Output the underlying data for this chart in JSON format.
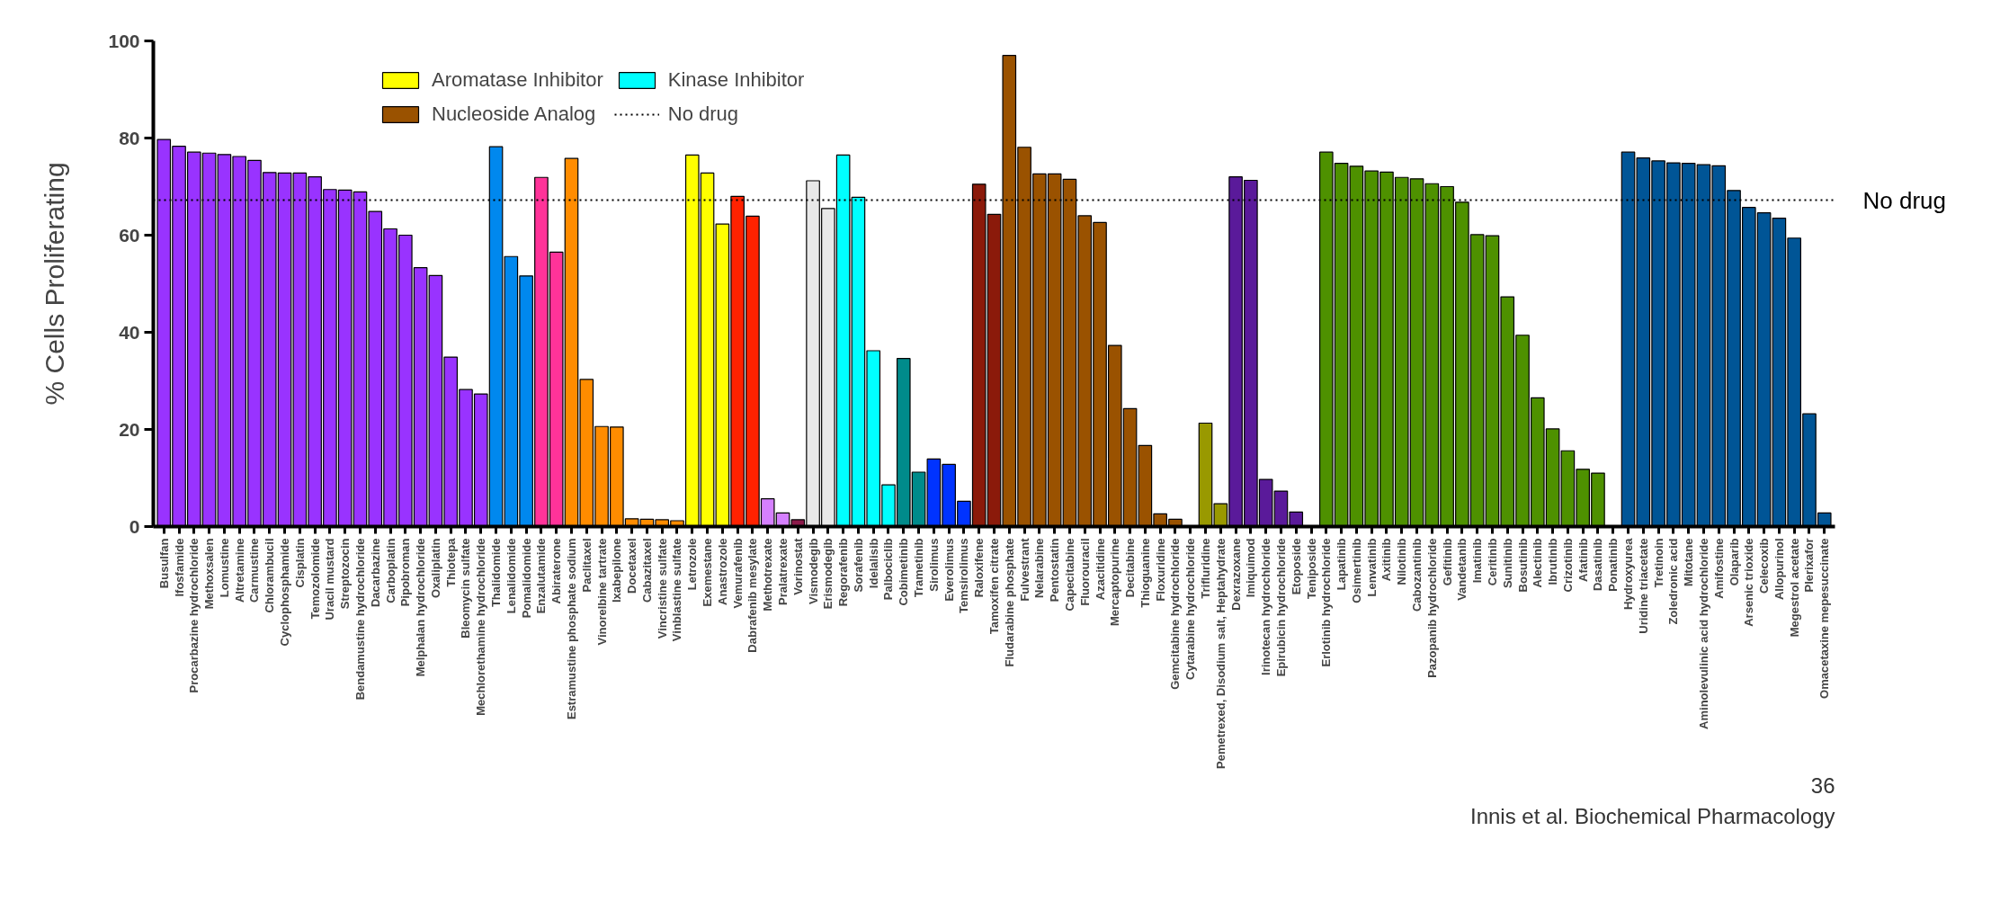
{
  "chart_data": {
    "type": "bar",
    "ylabel": "% Cells Proliferating",
    "categories": [
      "Busulfan",
      "Ifosfamide",
      "Procarbazine hydrochloride",
      "Methoxsalen",
      "Lomustine",
      "Altretamine",
      "Carmustine",
      "Chlorambucil",
      "Cyclophosphamide",
      "Cisplatin",
      "Temozolomide",
      "Uracil mustard",
      "Streptozocin",
      "Bendamustine hydrochloride",
      "Dacarbazine",
      "Carboplatin",
      "Pipobroman",
      "Melphalan hydrochloride",
      "Oxaliplatin",
      "Thiotepa",
      "Bleomycin sulfate",
      "Mechlorethamine hydrochloride",
      "Thalidomide",
      "Lenalidomide",
      "Pomalidomide",
      "Enzalutamide",
      "Abiraterone",
      "Estramustine phosphate sodium",
      "Paclitaxel",
      "Vinorelbine tartrate",
      "Ixabepilone",
      "Docetaxel",
      "Cabazitaxel",
      "Vincristine sulfate",
      "Vinblastine sulfate",
      "Letrozole",
      "Exemestane",
      "Anastrozole",
      "Vemurafenib",
      "Dabrafenib mesylate",
      "Methotrexate",
      "Pralatrexate",
      "Vorinostat",
      "Vismodegib",
      "Erismodegib",
      "Regorafenib",
      "Sorafenib",
      "Idelalisib",
      "Palbociclib",
      "Cobimetinib",
      "Trametinib",
      "Sirolimus",
      "Everolimus",
      "Temsirolimus",
      "Raloxifene",
      "Tamoxifen citrate",
      "Fludarabine phosphate",
      "Fulvestrant",
      "Nelarabine",
      "Pentostatin",
      "Capecitabine",
      "Fluorouracil",
      "Azacitidine",
      "Mercaptopurine",
      "Decitabine",
      "Thioguanine",
      "Floxuridine",
      "Gemcitabine hydrochloride",
      "Cytarabine hydrochloride",
      "Trifluridine",
      "Pemetrexed, Disodium salt, Heptahydrate",
      "Dexrazoxane",
      "Imiquimod",
      "Irinotecan hydrochloride",
      "Epirubicin hydrochloride",
      "Etoposide",
      "Teniposide",
      "Erlotinib hydrochloride",
      "Lapatinib",
      "Osimertinib",
      "Lenvatinib",
      "Axitinib",
      "Nilotinib",
      "Cabozantinib",
      "Pazopanib hydrochloride",
      "Gefitinib",
      "Vandetanib",
      "Imatinib",
      "Ceritinib",
      "Sunitinib",
      "Bosutinib",
      "Alectinib",
      "Ibrutinib",
      "Crizotinib",
      "Afatinib",
      "Dasatinib",
      "Ponatinib",
      "Hydroxyurea",
      "Uridine triacetate",
      "Tretinoin",
      "Zoledronic acid",
      "Mitotane",
      "Aminolevulinic acid hydrochloride",
      "Amifostine",
      "Olaparib",
      "Arsenic trioxide",
      "Celecoxib",
      "Allopurinol",
      "Megestrol acetate",
      "Plerixafor",
      "Omacetaxine mepesuccinate"
    ],
    "series": [
      {
        "color": "#9933ff",
        "values": [
          79.7,
          78.3,
          77.1,
          76.9,
          76.6,
          76.2,
          75.4,
          72.9,
          72.8,
          72.8,
          72.0,
          69.4,
          69.3,
          68.9,
          64.9,
          61.3,
          60.0,
          53.3,
          51.7,
          34.9,
          28.2,
          27.3,
          null,
          null,
          null,
          null,
          null,
          null,
          null,
          null,
          null,
          null,
          null,
          null,
          null,
          null,
          null,
          null,
          null,
          null,
          null,
          null,
          null,
          null,
          null,
          null,
          null,
          null,
          null,
          null,
          null,
          null,
          null,
          null,
          null,
          null,
          null,
          null,
          null,
          null,
          null,
          null,
          null,
          null,
          null,
          null,
          null,
          null,
          null,
          null,
          null,
          null,
          null,
          null,
          null,
          null,
          null,
          null,
          null,
          null,
          null,
          null,
          null,
          null,
          null,
          null,
          null,
          null,
          null,
          null,
          null,
          null,
          null,
          null,
          null,
          null,
          null,
          null,
          null,
          null,
          null,
          null,
          null,
          null,
          null,
          null,
          null,
          null,
          null,
          null,
          null
        ]
      },
      {
        "color": "#0088ee",
        "values": [
          null,
          null,
          null,
          null,
          null,
          null,
          null,
          null,
          null,
          null,
          null,
          null,
          null,
          null,
          null,
          null,
          null,
          null,
          null,
          null,
          null,
          null,
          78.2,
          55.6,
          51.6,
          null,
          null,
          null,
          null,
          null,
          null,
          null,
          null,
          null,
          null,
          null,
          null,
          null,
          null,
          null,
          null,
          null,
          null,
          null,
          null,
          null,
          null,
          null,
          null,
          null,
          null,
          null,
          null,
          null,
          null,
          null,
          null,
          null,
          null,
          null,
          null,
          null,
          null,
          null,
          null,
          null,
          null,
          null,
          null,
          null,
          null,
          null,
          null,
          null,
          null,
          null,
          null,
          null,
          null,
          null,
          null,
          null,
          null,
          null,
          null,
          null,
          null,
          null,
          null,
          null,
          null,
          null,
          null,
          null,
          null,
          null,
          null,
          null,
          null,
          null,
          null,
          null,
          null,
          null,
          null,
          null,
          null,
          null,
          null,
          null,
          null
        ]
      },
      {
        "color": "#ff3399",
        "values": [
          null,
          null,
          null,
          null,
          null,
          null,
          null,
          null,
          null,
          null,
          null,
          null,
          null,
          null,
          null,
          null,
          null,
          null,
          null,
          null,
          null,
          null,
          null,
          null,
          null,
          71.9,
          56.5,
          null,
          null,
          null,
          null,
          null,
          null,
          null,
          null,
          null,
          null,
          null,
          null,
          null,
          null,
          null,
          null,
          null,
          null,
          null,
          null,
          null,
          null,
          null,
          null,
          null,
          null,
          null,
          null,
          null,
          null,
          null,
          null,
          null,
          null,
          null,
          null,
          null,
          null,
          null,
          null,
          null,
          null,
          null,
          null,
          null,
          null,
          null,
          null,
          null,
          null,
          null,
          null,
          null,
          null,
          null,
          null,
          null,
          null,
          null,
          null,
          null,
          null,
          null,
          null,
          null,
          null,
          null,
          null,
          null,
          null,
          null,
          null,
          null,
          null,
          null,
          null,
          null,
          null,
          null,
          null,
          null,
          null,
          null,
          null
        ]
      },
      {
        "color": "#ff8c00",
        "values": [
          null,
          null,
          null,
          null,
          null,
          null,
          null,
          null,
          null,
          null,
          null,
          null,
          null,
          null,
          null,
          null,
          null,
          null,
          null,
          null,
          null,
          null,
          null,
          null,
          null,
          null,
          null,
          75.8,
          30.3,
          20.6,
          20.5,
          1.6,
          1.5,
          1.4,
          1.2,
          null,
          null,
          null,
          null,
          null,
          null,
          null,
          null,
          null,
          null,
          null,
          null,
          null,
          null,
          null,
          null,
          null,
          null,
          null,
          null,
          null,
          null,
          null,
          null,
          null,
          null,
          null,
          null,
          null,
          null,
          null,
          null,
          null,
          null,
          null,
          null,
          null,
          null,
          null,
          null,
          null,
          null,
          null,
          null,
          null,
          null,
          null,
          null,
          null,
          null,
          null,
          null,
          null,
          null,
          null,
          null,
          null,
          null,
          null,
          null,
          null,
          null,
          null,
          null,
          null,
          null,
          null,
          null,
          null,
          null,
          null,
          null,
          null,
          null,
          null,
          null
        ]
      },
      {
        "name": "Aromatase Inhibitor",
        "color": "#ffff00",
        "values": [
          null,
          null,
          null,
          null,
          null,
          null,
          null,
          null,
          null,
          null,
          null,
          null,
          null,
          null,
          null,
          null,
          null,
          null,
          null,
          null,
          null,
          null,
          null,
          null,
          null,
          null,
          null,
          null,
          null,
          null,
          null,
          null,
          null,
          null,
          null,
          76.5,
          72.8,
          62.3,
          null,
          null,
          null,
          null,
          null,
          null,
          null,
          null,
          null,
          null,
          null,
          null,
          null,
          null,
          null,
          null,
          null,
          null,
          null,
          null,
          null,
          null,
          null,
          null,
          null,
          null,
          null,
          null,
          null,
          null,
          null,
          null,
          null,
          null,
          null,
          null,
          null,
          null,
          null,
          null,
          null,
          null,
          null,
          null,
          null,
          null,
          null,
          null,
          null,
          null,
          null,
          null,
          null,
          null,
          null,
          null,
          null,
          null,
          null,
          null,
          null,
          null,
          null,
          null,
          null,
          null,
          null,
          null,
          null,
          null,
          null,
          null,
          null
        ]
      },
      {
        "color": "#ff2200",
        "values": [
          null,
          null,
          null,
          null,
          null,
          null,
          null,
          null,
          null,
          null,
          null,
          null,
          null,
          null,
          null,
          null,
          null,
          null,
          null,
          null,
          null,
          null,
          null,
          null,
          null,
          null,
          null,
          null,
          null,
          null,
          null,
          null,
          null,
          null,
          null,
          null,
          null,
          null,
          68.0,
          63.9,
          null,
          null,
          null,
          null,
          null,
          null,
          null,
          null,
          null,
          null,
          null,
          null,
          null,
          null,
          null,
          null,
          null,
          null,
          null,
          null,
          null,
          null,
          null,
          null,
          null,
          null,
          null,
          null,
          null,
          null,
          null,
          null,
          null,
          null,
          null,
          null,
          null,
          null,
          null,
          null,
          null,
          null,
          null,
          null,
          null,
          null,
          null,
          null,
          null,
          null,
          null,
          null,
          null,
          null,
          null,
          null,
          null,
          null,
          null,
          null,
          null,
          null,
          null,
          null,
          null,
          null,
          null,
          null,
          null,
          null,
          null
        ]
      },
      {
        "color": "#d580ff",
        "values": [
          null,
          null,
          null,
          null,
          null,
          null,
          null,
          null,
          null,
          null,
          null,
          null,
          null,
          null,
          null,
          null,
          null,
          null,
          null,
          null,
          null,
          null,
          null,
          null,
          null,
          null,
          null,
          null,
          null,
          null,
          null,
          null,
          null,
          null,
          null,
          null,
          null,
          null,
          null,
          null,
          5.7,
          2.8,
          null,
          null,
          null,
          null,
          null,
          null,
          null,
          null,
          null,
          null,
          null,
          null,
          null,
          null,
          null,
          null,
          null,
          null,
          null,
          null,
          null,
          null,
          null,
          null,
          null,
          null,
          null,
          null,
          null,
          null,
          null,
          null,
          null,
          null,
          null,
          null,
          null,
          null,
          null,
          null,
          null,
          null,
          null,
          null,
          null,
          null,
          null,
          null,
          null,
          null,
          null,
          null,
          null,
          null,
          null,
          null,
          null,
          null,
          null,
          null,
          null,
          null,
          null,
          null,
          null,
          null,
          null,
          null,
          null
        ]
      },
      {
        "color": "#8b1a4a",
        "values": [
          null,
          null,
          null,
          null,
          null,
          null,
          null,
          null,
          null,
          null,
          null,
          null,
          null,
          null,
          null,
          null,
          null,
          null,
          null,
          null,
          null,
          null,
          null,
          null,
          null,
          null,
          null,
          null,
          null,
          null,
          null,
          null,
          null,
          null,
          null,
          null,
          null,
          null,
          null,
          null,
          null,
          null,
          1.4,
          null,
          null,
          null,
          null,
          null,
          null,
          null,
          null,
          null,
          null,
          null,
          null,
          null,
          null,
          null,
          null,
          null,
          null,
          null,
          null,
          null,
          null,
          null,
          null,
          null,
          null,
          null,
          null,
          null,
          null,
          null,
          null,
          null,
          null,
          null,
          null,
          null,
          null,
          null,
          null,
          null,
          null,
          null,
          null,
          null,
          null,
          null,
          null,
          null,
          null,
          null,
          null,
          null,
          null,
          null,
          null,
          null,
          null,
          null,
          null,
          null,
          null,
          null,
          null,
          null,
          null,
          null,
          null
        ]
      },
      {
        "color": "#e8e8e8",
        "values": [
          null,
          null,
          null,
          null,
          null,
          null,
          null,
          null,
          null,
          null,
          null,
          null,
          null,
          null,
          null,
          null,
          null,
          null,
          null,
          null,
          null,
          null,
          null,
          null,
          null,
          null,
          null,
          null,
          null,
          null,
          null,
          null,
          null,
          null,
          null,
          null,
          null,
          null,
          null,
          null,
          null,
          null,
          null,
          71.2,
          65.5,
          null,
          null,
          null,
          null,
          null,
          null,
          null,
          null,
          null,
          null,
          null,
          null,
          null,
          null,
          null,
          null,
          null,
          null,
          null,
          null,
          null,
          null,
          null,
          null,
          null,
          null,
          null,
          null,
          null,
          null,
          null,
          null,
          null,
          null,
          null,
          null,
          null,
          null,
          null,
          null,
          null,
          null,
          null,
          null,
          null,
          null,
          null,
          null,
          null,
          null,
          null,
          null,
          null,
          null,
          null,
          null,
          null,
          null,
          null,
          null,
          null,
          null,
          null,
          null,
          null,
          null
        ]
      },
      {
        "name": "Kinase Inhibitor",
        "color": "#00ffff",
        "values": [
          null,
          null,
          null,
          null,
          null,
          null,
          null,
          null,
          null,
          null,
          null,
          null,
          null,
          null,
          null,
          null,
          null,
          null,
          null,
          null,
          null,
          null,
          null,
          null,
          null,
          null,
          null,
          null,
          null,
          null,
          null,
          null,
          null,
          null,
          null,
          null,
          null,
          null,
          null,
          null,
          null,
          null,
          null,
          null,
          null,
          76.5,
          67.8,
          36.2,
          8.6,
          null,
          null,
          null,
          null,
          null,
          null,
          null,
          null,
          null,
          null,
          null,
          null,
          null,
          null,
          null,
          null,
          null,
          null,
          null,
          null,
          null,
          null,
          null,
          null,
          null,
          null,
          null,
          null,
          null,
          null,
          null,
          null,
          null,
          null,
          null,
          null,
          null,
          null,
          null,
          null,
          null,
          null,
          null,
          null,
          null,
          null,
          null,
          null,
          null,
          null,
          null,
          null,
          null,
          null,
          null,
          null,
          null,
          null,
          null,
          null,
          null,
          null
        ]
      },
      {
        "color": "#008b8b",
        "values": [
          null,
          null,
          null,
          null,
          null,
          null,
          null,
          null,
          null,
          null,
          null,
          null,
          null,
          null,
          null,
          null,
          null,
          null,
          null,
          null,
          null,
          null,
          null,
          null,
          null,
          null,
          null,
          null,
          null,
          null,
          null,
          null,
          null,
          null,
          null,
          null,
          null,
          null,
          null,
          null,
          null,
          null,
          null,
          null,
          null,
          null,
          null,
          null,
          null,
          34.6,
          11.2,
          null,
          null,
          null,
          null,
          null,
          null,
          null,
          null,
          null,
          null,
          null,
          null,
          null,
          null,
          null,
          null,
          null,
          null,
          null,
          null,
          null,
          null,
          null,
          null,
          null,
          null,
          null,
          null,
          null,
          null,
          null,
          null,
          null,
          null,
          null,
          null,
          null,
          null,
          null,
          null,
          null,
          null,
          null,
          null,
          null,
          null,
          null,
          null,
          null,
          null,
          null,
          null,
          null,
          null,
          null,
          null,
          null,
          null,
          null,
          null
        ]
      },
      {
        "color": "#0033ff",
        "values": [
          null,
          null,
          null,
          null,
          null,
          null,
          null,
          null,
          null,
          null,
          null,
          null,
          null,
          null,
          null,
          null,
          null,
          null,
          null,
          null,
          null,
          null,
          null,
          null,
          null,
          null,
          null,
          null,
          null,
          null,
          null,
          null,
          null,
          null,
          null,
          null,
          null,
          null,
          null,
          null,
          null,
          null,
          null,
          null,
          null,
          null,
          null,
          null,
          null,
          null,
          null,
          13.9,
          12.8,
          5.2,
          null,
          null,
          null,
          null,
          null,
          null,
          null,
          null,
          null,
          null,
          null,
          null,
          null,
          null,
          null,
          null,
          null,
          null,
          null,
          null,
          null,
          null,
          null,
          null,
          null,
          null,
          null,
          null,
          null,
          null,
          null,
          null,
          null,
          null,
          null,
          null,
          null,
          null,
          null,
          null,
          null,
          null,
          null,
          null,
          null,
          null,
          null,
          null,
          null,
          null,
          null,
          null,
          null,
          null,
          null,
          null,
          null
        ]
      },
      {
        "color": "#8b1a0a",
        "values": [
          null,
          null,
          null,
          null,
          null,
          null,
          null,
          null,
          null,
          null,
          null,
          null,
          null,
          null,
          null,
          null,
          null,
          null,
          null,
          null,
          null,
          null,
          null,
          null,
          null,
          null,
          null,
          null,
          null,
          null,
          null,
          null,
          null,
          null,
          null,
          null,
          null,
          null,
          null,
          null,
          null,
          null,
          null,
          null,
          null,
          null,
          null,
          null,
          null,
          null,
          null,
          null,
          null,
          null,
          70.5,
          64.3,
          null,
          null,
          null,
          null,
          null,
          null,
          null,
          null,
          null,
          null,
          null,
          null,
          null,
          null,
          null,
          null,
          null,
          null,
          null,
          null,
          null,
          null,
          null,
          null,
          null,
          null,
          null,
          null,
          null,
          null,
          null,
          null,
          null,
          null,
          null,
          null,
          null,
          null,
          null,
          null,
          null,
          null,
          null,
          null,
          null,
          null,
          null,
          null,
          null,
          null,
          null,
          null,
          null,
          null,
          null
        ]
      },
      {
        "name": "Nucleoside Analog",
        "color": "#9a5200",
        "values": [
          null,
          null,
          null,
          null,
          null,
          null,
          null,
          null,
          null,
          null,
          null,
          null,
          null,
          null,
          null,
          null,
          null,
          null,
          null,
          null,
          null,
          null,
          null,
          null,
          null,
          null,
          null,
          null,
          null,
          null,
          null,
          null,
          null,
          null,
          null,
          null,
          null,
          null,
          null,
          null,
          null,
          null,
          null,
          null,
          null,
          null,
          null,
          null,
          null,
          null,
          null,
          null,
          null,
          null,
          null,
          null,
          97.0,
          78.1,
          72.6,
          72.6,
          71.5,
          64.0,
          62.6,
          37.3,
          24.3,
          16.7,
          2.6,
          1.5,
          null,
          null,
          null,
          null,
          null,
          null,
          null,
          null,
          null,
          null,
          null,
          null,
          null,
          null,
          null,
          null,
          null,
          null,
          null,
          null,
          null,
          null,
          null,
          null,
          null,
          null,
          null,
          null,
          null,
          null,
          null,
          null,
          null,
          null,
          null,
          null,
          null,
          null,
          null,
          null,
          null,
          null,
          null
        ]
      },
      {
        "color": "#999900",
        "values": [
          null,
          null,
          null,
          null,
          null,
          null,
          null,
          null,
          null,
          null,
          null,
          null,
          null,
          null,
          null,
          null,
          null,
          null,
          null,
          null,
          null,
          null,
          null,
          null,
          null,
          null,
          null,
          null,
          null,
          null,
          null,
          null,
          null,
          null,
          null,
          null,
          null,
          null,
          null,
          null,
          null,
          null,
          null,
          null,
          null,
          null,
          null,
          null,
          null,
          null,
          null,
          null,
          null,
          null,
          null,
          null,
          null,
          null,
          null,
          null,
          null,
          null,
          null,
          null,
          null,
          null,
          null,
          null,
          null,
          21.3,
          4.7,
          null,
          null,
          null,
          null,
          null,
          null,
          null,
          null,
          null,
          null,
          null,
          null,
          null,
          null,
          null,
          null,
          null,
          null,
          null,
          null,
          null,
          null,
          null,
          null,
          null,
          null,
          null,
          null,
          null,
          null,
          null,
          null,
          null,
          null,
          null,
          null,
          null,
          null,
          null,
          null
        ]
      },
      {
        "color": "#5a1a9a",
        "values": [
          null,
          null,
          null,
          null,
          null,
          null,
          null,
          null,
          null,
          null,
          null,
          null,
          null,
          null,
          null,
          null,
          null,
          null,
          null,
          null,
          null,
          null,
          null,
          null,
          null,
          null,
          null,
          null,
          null,
          null,
          null,
          null,
          null,
          null,
          null,
          null,
          null,
          null,
          null,
          null,
          null,
          null,
          null,
          null,
          null,
          null,
          null,
          null,
          null,
          null,
          null,
          null,
          null,
          null,
          null,
          null,
          null,
          null,
          null,
          null,
          null,
          null,
          null,
          null,
          null,
          null,
          null,
          null,
          null,
          null,
          null,
          72.0,
          71.3,
          9.7,
          7.3,
          3.0,
          null,
          null,
          null,
          null,
          null,
          null,
          null,
          null,
          null,
          null,
          null,
          null,
          null,
          null,
          null,
          null,
          null,
          null,
          null,
          null,
          null,
          null,
          null,
          null,
          null,
          null,
          null,
          null,
          null,
          null,
          null,
          null,
          null,
          null,
          null
        ]
      },
      {
        "color": "#4e9100",
        "values": [
          null,
          null,
          null,
          null,
          null,
          null,
          null,
          null,
          null,
          null,
          null,
          null,
          null,
          null,
          null,
          null,
          null,
          null,
          null,
          null,
          null,
          null,
          null,
          null,
          null,
          null,
          null,
          null,
          null,
          null,
          null,
          null,
          null,
          null,
          null,
          null,
          null,
          null,
          null,
          null,
          null,
          null,
          null,
          null,
          null,
          null,
          null,
          null,
          null,
          null,
          null,
          null,
          null,
          null,
          null,
          null,
          null,
          null,
          null,
          null,
          null,
          null,
          null,
          null,
          null,
          null,
          null,
          null,
          null,
          null,
          null,
          null,
          null,
          null,
          null,
          null,
          null,
          77.1,
          74.8,
          74.2,
          73.2,
          73.0,
          71.9,
          71.6,
          70.6,
          70.0,
          66.8,
          60.1,
          59.9,
          47.3,
          39.4,
          26.5,
          20.1,
          15.6,
          11.8,
          11.0,
          null,
          null,
          null,
          null,
          null,
          null,
          null,
          null,
          null,
          null,
          null,
          null,
          null,
          null,
          null
        ]
      },
      {
        "color": "#005596",
        "values": [
          null,
          null,
          null,
          null,
          null,
          null,
          null,
          null,
          null,
          null,
          null,
          null,
          null,
          null,
          null,
          null,
          null,
          null,
          null,
          null,
          null,
          null,
          null,
          null,
          null,
          null,
          null,
          null,
          null,
          null,
          null,
          null,
          null,
          null,
          null,
          null,
          null,
          null,
          null,
          null,
          null,
          null,
          null,
          null,
          null,
          null,
          null,
          null,
          null,
          null,
          null,
          null,
          null,
          null,
          null,
          null,
          null,
          null,
          null,
          null,
          null,
          null,
          null,
          null,
          null,
          null,
          null,
          null,
          null,
          null,
          null,
          null,
          null,
          null,
          null,
          null,
          null,
          null,
          null,
          null,
          null,
          null,
          null,
          null,
          null,
          null,
          null,
          null,
          null,
          null,
          null,
          null,
          null,
          null,
          null,
          null,
          null,
          77.1,
          75.9,
          75.3,
          74.9,
          74.8,
          74.5,
          74.3,
          69.2,
          65.7,
          64.6,
          63.5,
          59.4,
          23.2,
          2.8
        ]
      }
    ],
    "ylim": [
      0,
      100
    ],
    "yticks": [
      0,
      20,
      40,
      60,
      80,
      100
    ],
    "ref_lines": [
      {
        "axis": "y",
        "value": 67.2,
        "label": "No drug",
        "color": "#000000",
        "line_style": "dotted"
      }
    ],
    "legend": "top",
    "annotations": [
      "36",
      "Innis et al. Biochemical Pharmacology"
    ]
  }
}
